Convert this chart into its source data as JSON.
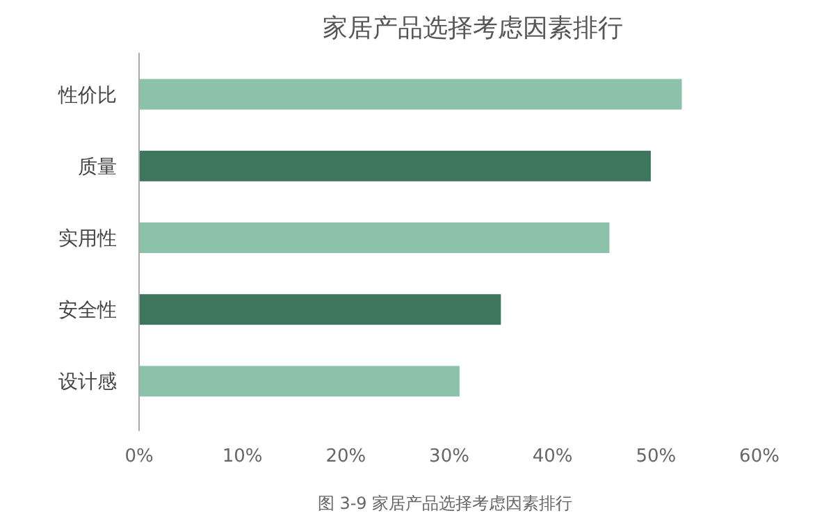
{
  "chart_data": {
    "type": "bar",
    "orientation": "horizontal",
    "title": "家居产品选择考虑因素排行",
    "categories": [
      "性价比",
      "质量",
      "实用性",
      "安全性",
      "设计感"
    ],
    "values": [
      52.5,
      49.5,
      45.5,
      35,
      31
    ],
    "colors": [
      "#8cc2aa",
      "#3d765d",
      "#8cc2aa",
      "#3d765d",
      "#8cc2aa"
    ],
    "xlim": [
      0,
      60
    ],
    "xticks": [
      {
        "value": 0,
        "label": "0%"
      },
      {
        "value": 10,
        "label": "10%"
      },
      {
        "value": 20,
        "label": "20%"
      },
      {
        "value": 30,
        "label": "30%"
      },
      {
        "value": 40,
        "label": "40%"
      },
      {
        "value": 50,
        "label": "50%"
      },
      {
        "value": 60,
        "label": "60%"
      }
    ],
    "grid": false,
    "annotations": [
      "图 3-9 家居产品选择考虑因素排行"
    ]
  }
}
